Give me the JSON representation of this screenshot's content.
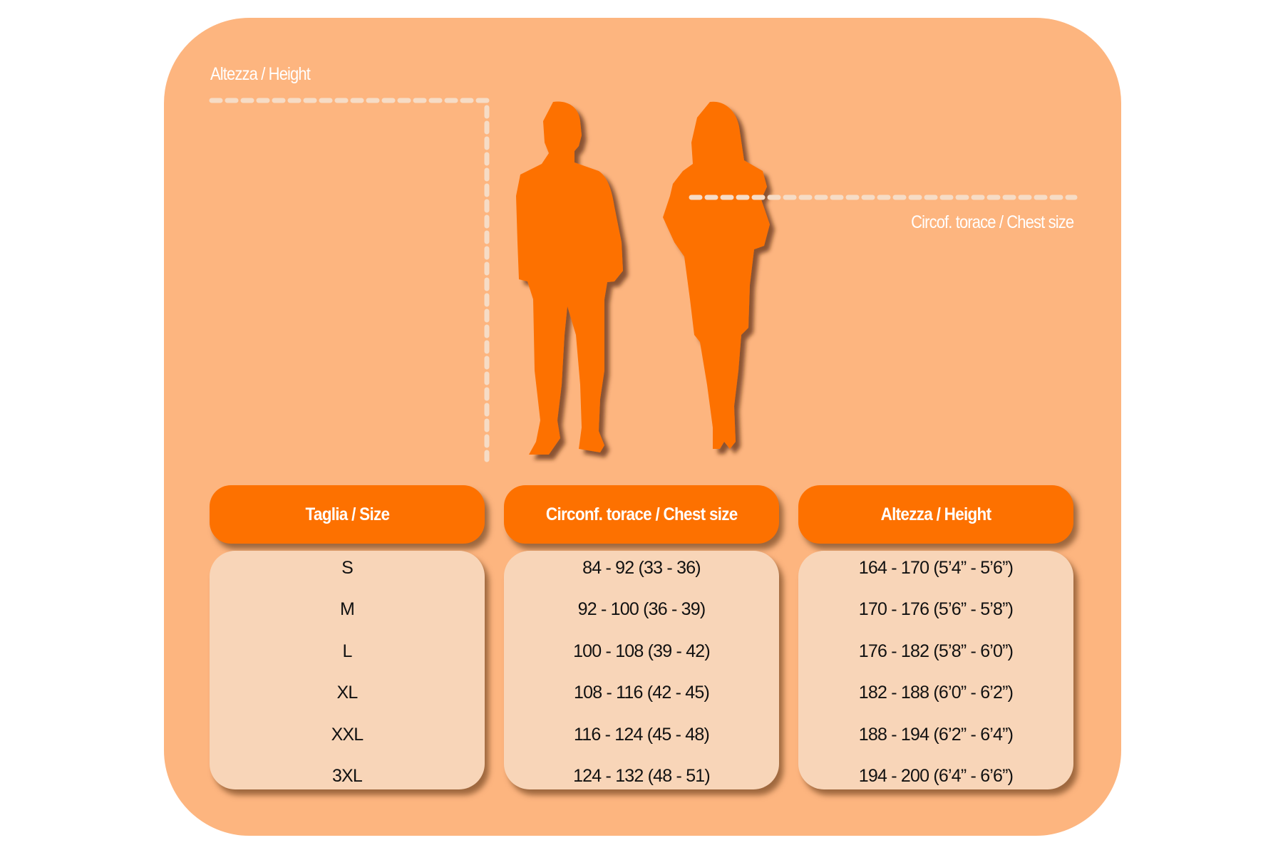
{
  "diagram": {
    "height_label": "Altezza / Height",
    "chest_label": "Circof. torace / Chest size"
  },
  "colors": {
    "background_panel": "#fdb57f",
    "header": "#fd7100",
    "cell": "#f8d5b8",
    "silhouette": "#fd7100"
  },
  "table": {
    "headers": [
      "Taglia / Size",
      "Circonf. torace / Chest size",
      "Altezza / Height"
    ],
    "sizes": [
      "S",
      "M",
      "L",
      "XL",
      "XXL",
      "3XL"
    ],
    "chest": [
      "84 - 92 (33 - 36)",
      "92 - 100 (36 - 39)",
      "100 - 108 (39 - 42)",
      "108 - 116 (42 - 45)",
      "116 - 124 (45 - 48)",
      "124 - 132 (48 - 51)"
    ],
    "height": [
      "164 - 170 (5’4” - 5’6”)",
      "170 - 176 (5’6” - 5’8”)",
      "176 - 182 (5’8” - 6’0”)",
      "182 - 188 (6’0” - 6’2”)",
      "188 - 194 (6’2” - 6’4”)",
      "194 - 200 (6’4” - 6’6”)"
    ]
  }
}
